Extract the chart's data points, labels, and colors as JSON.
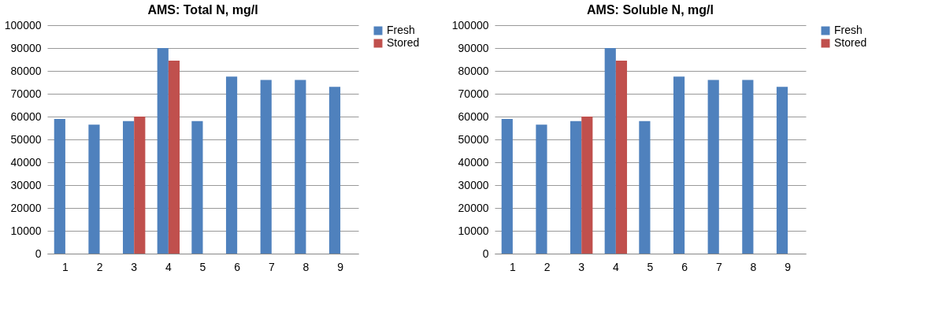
{
  "chart_data": [
    {
      "type": "bar",
      "title": "AMS: Total N, mg/l",
      "categories": [
        "1",
        "2",
        "3",
        "4",
        "5",
        "6",
        "7",
        "8",
        "9"
      ],
      "series": [
        {
          "name": "Fresh",
          "color": "#4f81bd",
          "values": [
            59000,
            56500,
            58000,
            90000,
            58000,
            77500,
            76000,
            76000,
            73000
          ]
        },
        {
          "name": "Stored",
          "color": "#c0504d",
          "values": [
            null,
            null,
            60000,
            84500,
            null,
            null,
            null,
            null,
            null
          ]
        }
      ],
      "ylim": [
        0,
        100000
      ],
      "yticks": [
        0,
        10000,
        20000,
        30000,
        40000,
        50000,
        60000,
        70000,
        80000,
        90000,
        100000
      ],
      "grid": "y",
      "legend": "right"
    },
    {
      "type": "bar",
      "title": "AMS: Soluble N, mg/l",
      "categories": [
        "1",
        "2",
        "3",
        "4",
        "5",
        "6",
        "7",
        "8",
        "9"
      ],
      "series": [
        {
          "name": "Fresh",
          "color": "#4f81bd",
          "values": [
            59000,
            56500,
            58000,
            90000,
            58000,
            77500,
            76000,
            76000,
            73000
          ]
        },
        {
          "name": "Stored",
          "color": "#c0504d",
          "values": [
            null,
            null,
            60000,
            84500,
            null,
            null,
            null,
            null,
            null
          ]
        }
      ],
      "ylim": [
        0,
        100000
      ],
      "yticks": [
        0,
        10000,
        20000,
        30000,
        40000,
        50000,
        60000,
        70000,
        80000,
        90000,
        100000
      ],
      "grid": "y",
      "legend": "right"
    }
  ]
}
